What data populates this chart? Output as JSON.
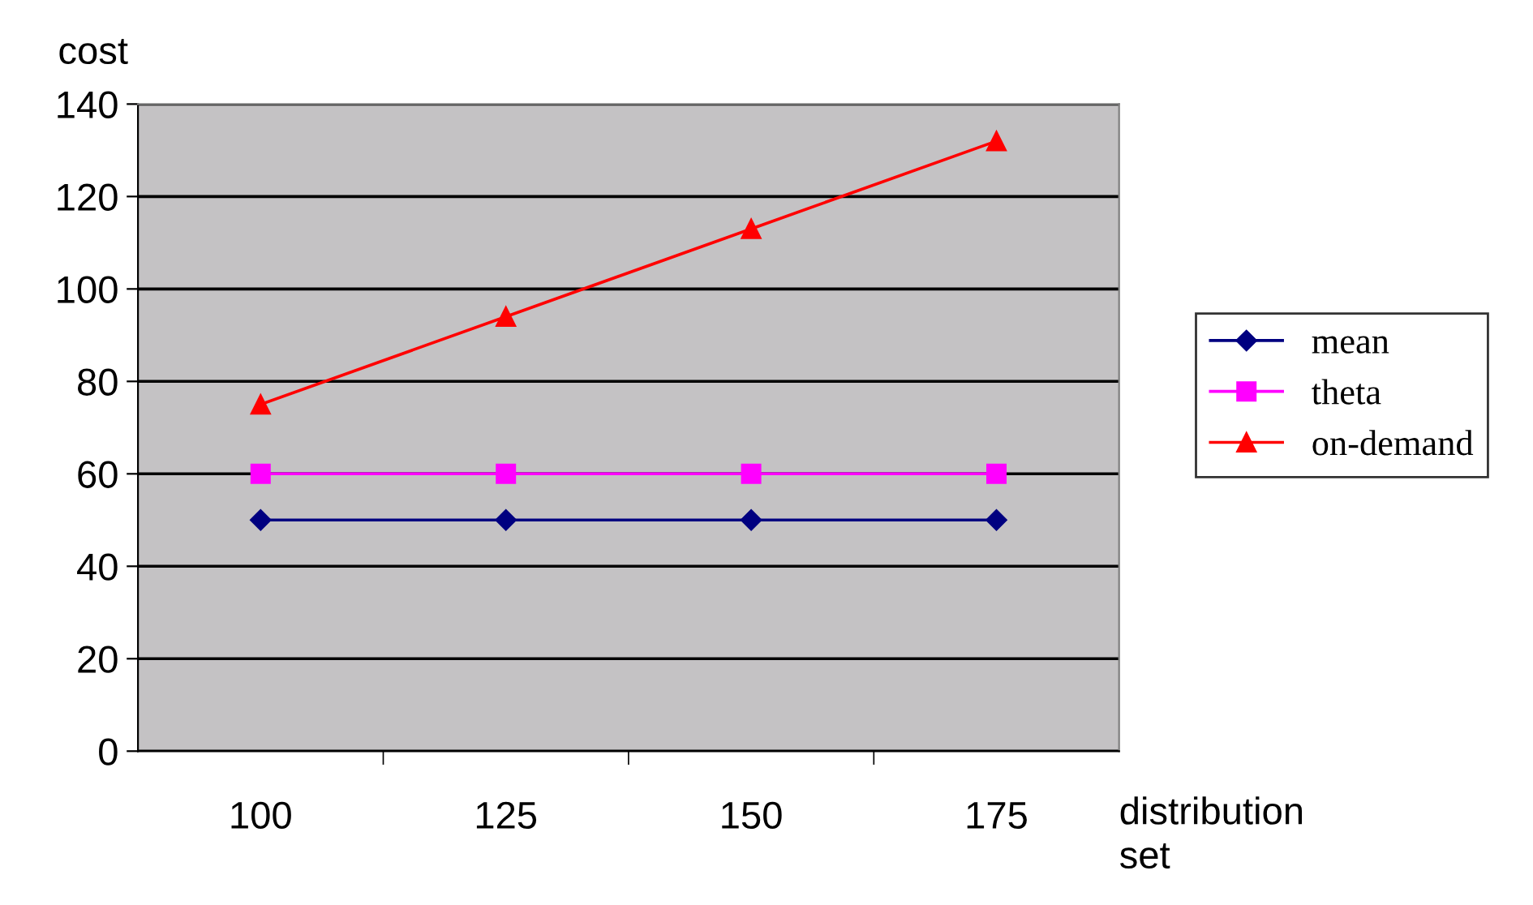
{
  "chart_data": {
    "type": "line",
    "ylabel": "cost",
    "xlabel": "distribution\nset",
    "categories": [
      "100",
      "125",
      "150",
      "175"
    ],
    "series": [
      {
        "name": "mean",
        "color": "#000080",
        "marker": "diamond",
        "values": [
          50,
          50,
          50,
          50
        ]
      },
      {
        "name": "theta",
        "color": "#ff00ff",
        "marker": "square",
        "values": [
          60,
          60,
          60,
          60
        ]
      },
      {
        "name": "on-demand",
        "color": "#ff0000",
        "marker": "triangle",
        "values": [
          75,
          94,
          113,
          132
        ]
      }
    ],
    "ylim": [
      0,
      140
    ],
    "yticks": [
      0,
      20,
      40,
      60,
      80,
      100,
      120,
      140
    ],
    "grid": "y",
    "legend": "right"
  }
}
